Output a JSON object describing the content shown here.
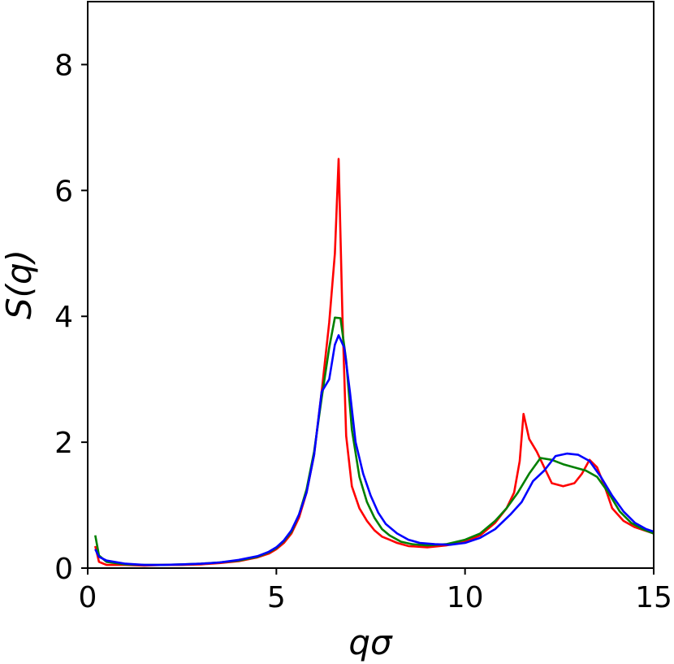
{
  "chart_data": {
    "type": "line",
    "xlabel": "qσ",
    "ylabel": "S(q)",
    "xlim": [
      0,
      15
    ],
    "ylim": [
      0,
      9
    ],
    "xticks": [
      0,
      5,
      10,
      15
    ],
    "yticks": [
      0,
      2,
      4,
      6,
      8
    ],
    "grid": false,
    "legend": "none",
    "series": [
      {
        "color": "#ff0000",
        "points": [
          [
            0.2,
            0.35
          ],
          [
            0.3,
            0.1
          ],
          [
            0.5,
            0.05
          ],
          [
            1,
            0.05
          ],
          [
            1.5,
            0.04
          ],
          [
            2,
            0.05
          ],
          [
            2.5,
            0.05
          ],
          [
            3,
            0.06
          ],
          [
            3.5,
            0.08
          ],
          [
            4,
            0.11
          ],
          [
            4.5,
            0.17
          ],
          [
            4.8,
            0.23
          ],
          [
            5,
            0.3
          ],
          [
            5.2,
            0.4
          ],
          [
            5.4,
            0.55
          ],
          [
            5.6,
            0.8
          ],
          [
            5.8,
            1.2
          ],
          [
            6,
            1.8
          ],
          [
            6.2,
            2.8
          ],
          [
            6.4,
            3.9
          ],
          [
            6.55,
            5.0
          ],
          [
            6.65,
            6.5
          ],
          [
            6.75,
            4.0
          ],
          [
            6.85,
            2.1
          ],
          [
            7,
            1.3
          ],
          [
            7.2,
            0.95
          ],
          [
            7.4,
            0.75
          ],
          [
            7.6,
            0.6
          ],
          [
            7.8,
            0.5
          ],
          [
            8,
            0.45
          ],
          [
            8.2,
            0.4
          ],
          [
            8.5,
            0.35
          ],
          [
            9,
            0.33
          ],
          [
            9.5,
            0.36
          ],
          [
            10,
            0.42
          ],
          [
            10.4,
            0.52
          ],
          [
            10.8,
            0.72
          ],
          [
            11.1,
            0.95
          ],
          [
            11.3,
            1.2
          ],
          [
            11.45,
            1.7
          ],
          [
            11.55,
            2.45
          ],
          [
            11.7,
            2.05
          ],
          [
            11.9,
            1.85
          ],
          [
            12.1,
            1.6
          ],
          [
            12.3,
            1.35
          ],
          [
            12.6,
            1.3
          ],
          [
            12.9,
            1.35
          ],
          [
            13.1,
            1.5
          ],
          [
            13.3,
            1.72
          ],
          [
            13.5,
            1.6
          ],
          [
            13.7,
            1.3
          ],
          [
            13.9,
            0.95
          ],
          [
            14.2,
            0.75
          ],
          [
            14.5,
            0.65
          ],
          [
            15,
            0.55
          ]
        ]
      },
      {
        "color": "#008000",
        "points": [
          [
            0.2,
            0.52
          ],
          [
            0.3,
            0.2
          ],
          [
            0.5,
            0.1
          ],
          [
            1,
            0.06
          ],
          [
            1.5,
            0.05
          ],
          [
            2,
            0.05
          ],
          [
            2.5,
            0.06
          ],
          [
            3,
            0.07
          ],
          [
            3.5,
            0.09
          ],
          [
            4,
            0.12
          ],
          [
            4.5,
            0.18
          ],
          [
            4.8,
            0.25
          ],
          [
            5,
            0.32
          ],
          [
            5.2,
            0.43
          ],
          [
            5.4,
            0.58
          ],
          [
            5.6,
            0.85
          ],
          [
            5.8,
            1.25
          ],
          [
            6,
            1.85
          ],
          [
            6.2,
            2.7
          ],
          [
            6.4,
            3.5
          ],
          [
            6.55,
            3.98
          ],
          [
            6.7,
            3.97
          ],
          [
            6.85,
            3.3
          ],
          [
            7,
            2.2
          ],
          [
            7.2,
            1.45
          ],
          [
            7.4,
            1.05
          ],
          [
            7.6,
            0.8
          ],
          [
            7.8,
            0.62
          ],
          [
            8,
            0.52
          ],
          [
            8.3,
            0.42
          ],
          [
            8.6,
            0.38
          ],
          [
            9,
            0.36
          ],
          [
            9.5,
            0.38
          ],
          [
            10,
            0.45
          ],
          [
            10.4,
            0.55
          ],
          [
            10.8,
            0.75
          ],
          [
            11.1,
            0.95
          ],
          [
            11.4,
            1.2
          ],
          [
            11.7,
            1.5
          ],
          [
            12,
            1.75
          ],
          [
            12.3,
            1.72
          ],
          [
            12.6,
            1.65
          ],
          [
            12.9,
            1.6
          ],
          [
            13.2,
            1.55
          ],
          [
            13.5,
            1.45
          ],
          [
            13.8,
            1.2
          ],
          [
            14.1,
            0.9
          ],
          [
            14.4,
            0.72
          ],
          [
            14.7,
            0.62
          ],
          [
            15,
            0.55
          ]
        ]
      },
      {
        "color": "#0000ff",
        "points": [
          [
            0.2,
            0.3
          ],
          [
            0.3,
            0.18
          ],
          [
            0.5,
            0.12
          ],
          [
            1,
            0.07
          ],
          [
            1.5,
            0.05
          ],
          [
            2,
            0.05
          ],
          [
            2.5,
            0.06
          ],
          [
            3,
            0.07
          ],
          [
            3.5,
            0.09
          ],
          [
            4,
            0.13
          ],
          [
            4.5,
            0.19
          ],
          [
            4.8,
            0.26
          ],
          [
            5,
            0.33
          ],
          [
            5.2,
            0.44
          ],
          [
            5.4,
            0.6
          ],
          [
            5.6,
            0.85
          ],
          [
            5.8,
            1.2
          ],
          [
            6,
            1.8
          ],
          [
            6.2,
            2.8
          ],
          [
            6.4,
            3.0
          ],
          [
            6.55,
            3.55
          ],
          [
            6.65,
            3.7
          ],
          [
            6.8,
            3.5
          ],
          [
            6.95,
            2.8
          ],
          [
            7.1,
            2.0
          ],
          [
            7.3,
            1.5
          ],
          [
            7.5,
            1.15
          ],
          [
            7.7,
            0.88
          ],
          [
            7.9,
            0.7
          ],
          [
            8.2,
            0.55
          ],
          [
            8.5,
            0.45
          ],
          [
            8.8,
            0.4
          ],
          [
            9.2,
            0.38
          ],
          [
            9.6,
            0.37
          ],
          [
            10,
            0.4
          ],
          [
            10.4,
            0.48
          ],
          [
            10.8,
            0.62
          ],
          [
            11.2,
            0.85
          ],
          [
            11.5,
            1.05
          ],
          [
            11.8,
            1.38
          ],
          [
            12.1,
            1.55
          ],
          [
            12.4,
            1.78
          ],
          [
            12.7,
            1.82
          ],
          [
            13,
            1.8
          ],
          [
            13.3,
            1.7
          ],
          [
            13.6,
            1.45
          ],
          [
            13.9,
            1.15
          ],
          [
            14.2,
            0.9
          ],
          [
            14.5,
            0.72
          ],
          [
            14.8,
            0.62
          ],
          [
            15,
            0.58
          ]
        ]
      }
    ]
  }
}
